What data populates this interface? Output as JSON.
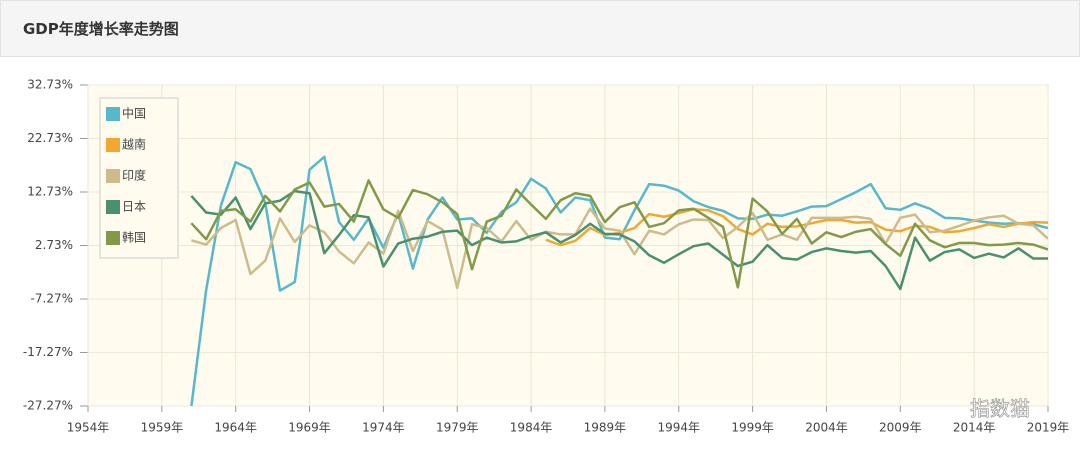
{
  "header": {
    "title": "GDP年度增长率走势图"
  },
  "watermark": "指数猫",
  "chart_data": {
    "type": "line",
    "x": [
      1954,
      1955,
      1956,
      1957,
      1958,
      1959,
      1960,
      1961,
      1962,
      1963,
      1964,
      1965,
      1966,
      1967,
      1968,
      1969,
      1970,
      1971,
      1972,
      1973,
      1974,
      1975,
      1976,
      1977,
      1978,
      1979,
      1980,
      1981,
      1982,
      1983,
      1984,
      1985,
      1986,
      1987,
      1988,
      1989,
      1990,
      1991,
      1992,
      1993,
      1994,
      1995,
      1996,
      1997,
      1998,
      1999,
      2000,
      2001,
      2002,
      2003,
      2004,
      2005,
      2006,
      2007,
      2008,
      2009,
      2010,
      2011,
      2012,
      2013,
      2014,
      2015,
      2016,
      2017,
      2018,
      2019
    ],
    "xlim": [
      1954,
      2019
    ],
    "xticks": [
      {
        "value": 1954,
        "label": "1954年"
      },
      {
        "value": 1959,
        "label": "1959年"
      },
      {
        "value": 1964,
        "label": "1964年"
      },
      {
        "value": 1969,
        "label": "1969年"
      },
      {
        "value": 1974,
        "label": "1974年"
      },
      {
        "value": 1979,
        "label": "1979年"
      },
      {
        "value": 1984,
        "label": "1984年"
      },
      {
        "value": 1989,
        "label": "1989年"
      },
      {
        "value": 1994,
        "label": "1994年"
      },
      {
        "value": 1999,
        "label": "1999年"
      },
      {
        "value": 2004,
        "label": "2004年"
      },
      {
        "value": 2009,
        "label": "2009年"
      },
      {
        "value": 2014,
        "label": "2014年"
      },
      {
        "value": 2019,
        "label": "2019年"
      }
    ],
    "ylim": [
      -27.27,
      32.73
    ],
    "yticks": [
      {
        "value": -27.27,
        "label": "-27.27%"
      },
      {
        "value": -17.27,
        "label": "-17.27%"
      },
      {
        "value": -7.27,
        "label": "-7.27%"
      },
      {
        "value": 2.73,
        "label": "2.73%"
      },
      {
        "value": 12.73,
        "label": "12.73%"
      },
      {
        "value": 22.73,
        "label": "22.73%"
      },
      {
        "value": 32.73,
        "label": "32.73%"
      }
    ],
    "grid": true,
    "legend": "top-left",
    "series": [
      {
        "name": "中国",
        "color": "#56b8cc",
        "values": [
          null,
          null,
          null,
          null,
          null,
          null,
          null,
          -27.3,
          -5.6,
          10.2,
          18.3,
          17.0,
          10.7,
          -5.7,
          -4.1,
          16.9,
          19.3,
          7.1,
          3.8,
          7.8,
          2.3,
          8.7,
          -1.6,
          7.6,
          11.7,
          7.6,
          7.8,
          5.1,
          9.0,
          10.8,
          15.2,
          13.4,
          8.9,
          11.7,
          11.2,
          4.2,
          3.9,
          9.3,
          14.2,
          13.9,
          13.0,
          11.0,
          9.9,
          9.2,
          7.8,
          7.7,
          8.5,
          8.3,
          9.1,
          10.0,
          10.1,
          11.4,
          12.7,
          14.2,
          9.7,
          9.4,
          10.6,
          9.6,
          7.9,
          7.8,
          7.4,
          7.0,
          6.8,
          6.9,
          6.7,
          6.0
        ]
      },
      {
        "name": "越南",
        "color": "#f0a830",
        "values": [
          null,
          null,
          null,
          null,
          null,
          null,
          null,
          null,
          null,
          null,
          null,
          null,
          null,
          null,
          null,
          null,
          null,
          null,
          null,
          null,
          null,
          null,
          null,
          null,
          null,
          null,
          null,
          null,
          null,
          null,
          null,
          3.8,
          2.8,
          3.6,
          6.0,
          4.7,
          5.1,
          6.0,
          8.6,
          8.1,
          8.8,
          9.5,
          9.3,
          8.2,
          5.8,
          4.8,
          6.8,
          6.2,
          6.3,
          6.9,
          7.5,
          7.5,
          7.0,
          7.1,
          5.7,
          5.4,
          6.4,
          6.2,
          5.2,
          5.4,
          6.0,
          6.7,
          6.2,
          6.8,
          7.1,
          7.0
        ]
      },
      {
        "name": "印度",
        "color": "#cdbb8c",
        "values": [
          null,
          null,
          null,
          null,
          null,
          null,
          null,
          3.7,
          2.9,
          6.0,
          7.5,
          -2.6,
          -0.1,
          7.8,
          3.4,
          6.5,
          5.2,
          1.6,
          -0.6,
          3.3,
          1.2,
          9.2,
          1.7,
          7.3,
          5.7,
          -5.2,
          6.7,
          6.0,
          3.5,
          7.3,
          3.8,
          5.3,
          4.8,
          4.8,
          9.6,
          5.9,
          5.5,
          1.1,
          5.5,
          4.8,
          6.7,
          7.6,
          7.5,
          4.1,
          6.2,
          8.8,
          3.8,
          4.8,
          3.8,
          7.9,
          7.9,
          7.9,
          8.1,
          7.7,
          3.1,
          7.9,
          8.5,
          5.2,
          5.5,
          6.4,
          7.4,
          8.0,
          8.3,
          6.8,
          6.5,
          4.0
        ]
      },
      {
        "name": "日本",
        "color": "#4a9070",
        "values": [
          null,
          null,
          null,
          null,
          null,
          null,
          null,
          12.0,
          8.9,
          8.5,
          11.7,
          5.8,
          10.6,
          11.1,
          12.9,
          12.5,
          1.3,
          4.7,
          8.4,
          8.0,
          -1.2,
          3.1,
          4.0,
          4.4,
          5.3,
          5.5,
          2.8,
          4.2,
          3.3,
          3.5,
          4.5,
          5.2,
          3.3,
          4.7,
          6.8,
          4.9,
          4.8,
          3.5,
          0.9,
          -0.5,
          1.1,
          2.6,
          3.1,
          1.0,
          -1.1,
          -0.3,
          2.8,
          0.4,
          0.1,
          1.5,
          2.2,
          1.7,
          1.4,
          1.7,
          -1.1,
          -5.4,
          4.2,
          -0.1,
          1.5,
          2.0,
          0.4,
          1.2,
          0.5,
          2.2,
          0.3,
          0.3
        ]
      },
      {
        "name": "韩国",
        "color": "#82994a",
        "values": [
          null,
          null,
          null,
          null,
          null,
          null,
          null,
          6.9,
          3.9,
          9.2,
          9.5,
          7.2,
          12.0,
          9.1,
          13.2,
          14.5,
          10.0,
          10.5,
          7.2,
          14.9,
          9.5,
          7.9,
          13.1,
          12.3,
          10.8,
          8.6,
          -1.7,
          7.2,
          8.3,
          13.2,
          10.4,
          7.7,
          11.2,
          12.5,
          12.0,
          7.1,
          9.9,
          10.8,
          6.2,
          6.9,
          9.3,
          9.6,
          7.9,
          6.2,
          -5.1,
          11.5,
          9.1,
          4.9,
          7.7,
          3.1,
          5.2,
          4.3,
          5.3,
          5.8,
          3.0,
          0.8,
          6.8,
          3.7,
          2.4,
          3.2,
          3.2,
          2.8,
          2.9,
          3.2,
          2.9,
          2.0
        ]
      }
    ]
  }
}
